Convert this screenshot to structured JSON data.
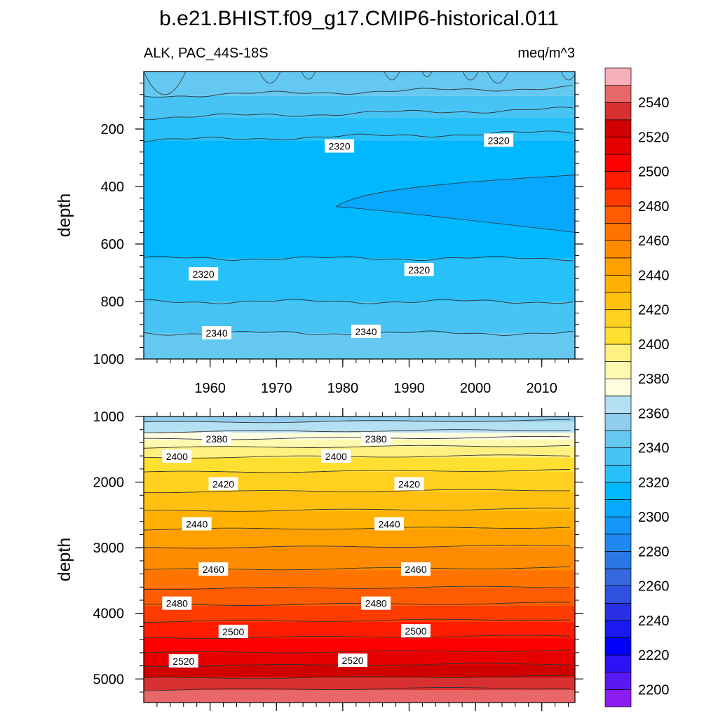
{
  "title": "b.e21.BHIST.f09_g17.CMIP6-historical.011",
  "chart_data": {
    "type": "contour",
    "variable": "ALK",
    "region": "PAC_44S-18S",
    "units": "meq/m^3",
    "xlim": [
      1950,
      2015
    ],
    "x_ticks": [
      1960,
      1970,
      1980,
      1990,
      2000,
      2010
    ],
    "panels": [
      {
        "name": "upper",
        "ylabel": "depth",
        "ylim": [
          0,
          1000
        ],
        "y_ticks": [
          200,
          400,
          600,
          800,
          1000
        ],
        "show_x_tick_labels": true,
        "bands": [
          {
            "from": 0,
            "to": 85,
            "value": "2340-2350"
          },
          {
            "from": 85,
            "to": 160,
            "value": "2330-2340"
          },
          {
            "from": 160,
            "to": 240,
            "value": "2320-2330"
          },
          {
            "from": 240,
            "to": 650,
            "value": "2310-2320"
          },
          {
            "from": 380,
            "to": 560,
            "value": "2300-2310",
            "x_from": 1979
          },
          {
            "from": 650,
            "to": 800,
            "value": "2320-2330"
          },
          {
            "from": 800,
            "to": 910,
            "value": "2330-2340"
          },
          {
            "from": 910,
            "to": 1000,
            "value": "2340-2350"
          }
        ],
        "contour_labels": [
          {
            "text": "2320",
            "x": 1979.5,
            "y": 260
          },
          {
            "text": "2320",
            "x": 2003.5,
            "y": 240
          },
          {
            "text": "2320",
            "x": 1959,
            "y": 705
          },
          {
            "text": "2320",
            "x": 1991.5,
            "y": 690
          },
          {
            "text": "2340",
            "x": 1961,
            "y": 910
          },
          {
            "text": "2340",
            "x": 1983.5,
            "y": 905
          }
        ]
      },
      {
        "name": "lower",
        "ylabel": "depth",
        "ylim": [
          1000,
          5360
        ],
        "y_ticks": [
          1000,
          2000,
          3000,
          4000,
          5000
        ],
        "show_x_tick_labels": false,
        "contour_labels": [
          {
            "text": "2380",
            "x": 1961,
            "y": 1340
          },
          {
            "text": "2380",
            "x": 1985,
            "y": 1340
          },
          {
            "text": "2400",
            "x": 1955,
            "y": 1610
          },
          {
            "text": "2400",
            "x": 1979,
            "y": 1610
          },
          {
            "text": "2420",
            "x": 1962,
            "y": 2030
          },
          {
            "text": "2420",
            "x": 1990,
            "y": 2030
          },
          {
            "text": "2440",
            "x": 1958,
            "y": 2640
          },
          {
            "text": "2440",
            "x": 1987,
            "y": 2640
          },
          {
            "text": "2460",
            "x": 1960.5,
            "y": 3330
          },
          {
            "text": "2460",
            "x": 1991,
            "y": 3330
          },
          {
            "text": "2480",
            "x": 1955,
            "y": 3850
          },
          {
            "text": "2480",
            "x": 1985,
            "y": 3850
          },
          {
            "text": "2500",
            "x": 1963.5,
            "y": 4280
          },
          {
            "text": "2500",
            "x": 1991,
            "y": 4270
          },
          {
            "text": "2520",
            "x": 1956,
            "y": 4730
          },
          {
            "text": "2520",
            "x": 1981.5,
            "y": 4720
          }
        ]
      }
    ],
    "colorbar": {
      "labels": [
        2200,
        2220,
        2240,
        2260,
        2280,
        2300,
        2320,
        2340,
        2360,
        2380,
        2400,
        2420,
        2440,
        2460,
        2480,
        2500,
        2520,
        2540
      ],
      "levels": [
        2190,
        2200,
        2210,
        2220,
        2230,
        2240,
        2250,
        2260,
        2270,
        2280,
        2290,
        2300,
        2310,
        2320,
        2330,
        2340,
        2350,
        2360,
        2370,
        2380,
        2390,
        2400,
        2410,
        2420,
        2430,
        2440,
        2450,
        2460,
        2470,
        2480,
        2490,
        2500,
        2510,
        2520,
        2530,
        2540,
        2550,
        2560
      ],
      "colors": [
        "#8c1cf0",
        "#5a18f2",
        "#2c12f4",
        "#0000fa",
        "#1a1af0",
        "#2830e6",
        "#3050e0",
        "#3468dc",
        "#2a78e6",
        "#1e88f0",
        "#1498f8",
        "#08a8ff",
        "#00b8ff",
        "#28c0f8",
        "#48c4f4",
        "#64c8f0",
        "#90cdee",
        "#b4e0f4",
        "#fffee0",
        "#fff8b0",
        "#fff080",
        "#ffe030",
        "#ffd020",
        "#ffc010",
        "#ffb000",
        "#ffa000",
        "#ff8c00",
        "#ff7400",
        "#ff5c00",
        "#ff3c00",
        "#ff1c00",
        "#ff0000",
        "#e80000",
        "#d00000",
        "#d83030",
        "#e86868",
        "#f8b0b8"
      ]
    }
  }
}
